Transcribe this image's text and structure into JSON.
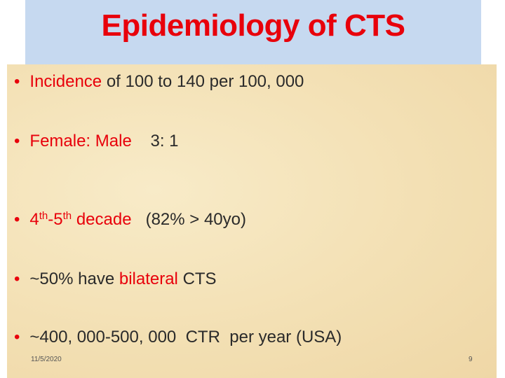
{
  "header": {
    "title": "Epidemiology of CTS"
  },
  "bullets": [
    {
      "parts": [
        "Incidence",
        "of 100 to 140 per 100, 000"
      ]
    },
    {
      "parts": [
        "Female: Male",
        "3: 1"
      ]
    },
    {
      "parts": [
        "4",
        "th",
        "-5",
        "th",
        "decade",
        "(82% > 40yo)"
      ]
    },
    {
      "parts": [
        "~50% have",
        "bilateral",
        "CTS"
      ]
    },
    {
      "parts": [
        "~400, 000-500, 000  CTR  per year (USA)"
      ]
    }
  ],
  "footer": {
    "date": "11/5/2020",
    "page": "9"
  }
}
